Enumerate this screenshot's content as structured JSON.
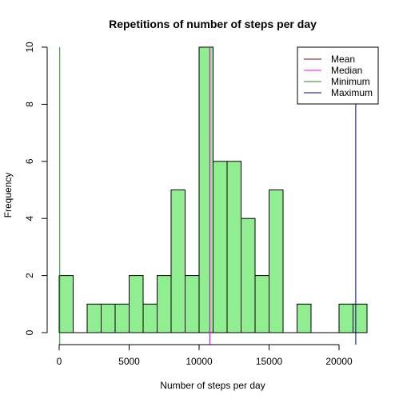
{
  "chart_data": {
    "type": "bar",
    "title": "Repetitions of number of steps per day",
    "xlabel": "Number of steps per day",
    "ylabel": "Frequency",
    "bin_width": 1000,
    "bins": [
      {
        "start": 0,
        "end": 1000,
        "count": 2
      },
      {
        "start": 1000,
        "end": 2000,
        "count": 0
      },
      {
        "start": 2000,
        "end": 3000,
        "count": 1
      },
      {
        "start": 3000,
        "end": 4000,
        "count": 1
      },
      {
        "start": 4000,
        "end": 5000,
        "count": 1
      },
      {
        "start": 5000,
        "end": 6000,
        "count": 2
      },
      {
        "start": 6000,
        "end": 7000,
        "count": 1
      },
      {
        "start": 7000,
        "end": 8000,
        "count": 2
      },
      {
        "start": 8000,
        "end": 9000,
        "count": 5
      },
      {
        "start": 9000,
        "end": 10000,
        "count": 2
      },
      {
        "start": 10000,
        "end": 11000,
        "count": 10
      },
      {
        "start": 11000,
        "end": 12000,
        "count": 6
      },
      {
        "start": 12000,
        "end": 13000,
        "count": 6
      },
      {
        "start": 13000,
        "end": 14000,
        "count": 4
      },
      {
        "start": 14000,
        "end": 15000,
        "count": 2
      },
      {
        "start": 15000,
        "end": 16000,
        "count": 5
      },
      {
        "start": 16000,
        "end": 17000,
        "count": 0
      },
      {
        "start": 17000,
        "end": 18000,
        "count": 1
      },
      {
        "start": 18000,
        "end": 19000,
        "count": 0
      },
      {
        "start": 19000,
        "end": 20000,
        "count": 0
      },
      {
        "start": 20000,
        "end": 21000,
        "count": 1
      },
      {
        "start": 21000,
        "end": 22000,
        "count": 1
      }
    ],
    "xlim": [
      0,
      22000
    ],
    "ylim": [
      0,
      10
    ],
    "x_ticks": [
      0,
      5000,
      10000,
      15000,
      20000
    ],
    "y_ticks": [
      0,
      2,
      4,
      6,
      8,
      10
    ],
    "bar_color": "#90ee90",
    "bar_border": "#000000",
    "reference_lines": [
      {
        "name": "Mean",
        "value": 10766,
        "color": "#800000"
      },
      {
        "name": "Median",
        "value": 10765,
        "color": "#ff00ff"
      },
      {
        "name": "Minimum",
        "value": 41,
        "color": "#228b22"
      },
      {
        "name": "Maximum",
        "value": 21194,
        "color": "#00008b"
      }
    ],
    "legend_position": "top-right",
    "grid": false
  }
}
